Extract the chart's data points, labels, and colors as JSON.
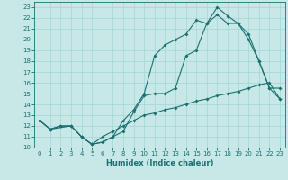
{
  "title": "",
  "xlabel": "Humidex (Indice chaleur)",
  "xlim": [
    -0.5,
    23.5
  ],
  "ylim": [
    10,
    23.5
  ],
  "yticks": [
    10,
    11,
    12,
    13,
    14,
    15,
    16,
    17,
    18,
    19,
    20,
    21,
    22,
    23
  ],
  "xticks": [
    0,
    1,
    2,
    3,
    4,
    5,
    6,
    7,
    8,
    9,
    10,
    11,
    12,
    13,
    14,
    15,
    16,
    17,
    18,
    19,
    20,
    21,
    22,
    23
  ],
  "bg_color": "#c8e8e8",
  "line_color": "#1a7070",
  "grid_color": "#a8d8d8",
  "line1_x": [
    0,
    1,
    2,
    3,
    4,
    5,
    6,
    7,
    8,
    9,
    10,
    11,
    12,
    13,
    14,
    15,
    16,
    17,
    18,
    19,
    20,
    21,
    22,
    23
  ],
  "line1_y": [
    12.5,
    11.7,
    12.0,
    12.0,
    11.0,
    10.3,
    10.5,
    11.0,
    11.5,
    13.3,
    14.8,
    15.0,
    15.0,
    15.5,
    18.5,
    19.0,
    21.5,
    23.0,
    22.2,
    21.5,
    20.5,
    18.0,
    15.5,
    14.5
  ],
  "line2_x": [
    0,
    1,
    3,
    4,
    5,
    6,
    7,
    8,
    9,
    10,
    11,
    12,
    13,
    14,
    15,
    16,
    17,
    18,
    19,
    20,
    21,
    22,
    23
  ],
  "line2_y": [
    12.5,
    11.7,
    12.0,
    11.0,
    10.3,
    10.5,
    11.0,
    12.5,
    13.5,
    15.0,
    18.5,
    19.5,
    20.0,
    20.5,
    21.8,
    21.5,
    22.3,
    21.5,
    21.5,
    20.0,
    18.0,
    15.5,
    15.5
  ],
  "line3_x": [
    0,
    1,
    2,
    3,
    4,
    5,
    6,
    7,
    8,
    9,
    10,
    11,
    12,
    13,
    14,
    15,
    16,
    17,
    18,
    19,
    20,
    21,
    22,
    23
  ],
  "line3_y": [
    12.5,
    11.7,
    12.0,
    12.0,
    11.0,
    10.3,
    11.0,
    11.5,
    12.0,
    12.5,
    13.0,
    13.2,
    13.5,
    13.7,
    14.0,
    14.3,
    14.5,
    14.8,
    15.0,
    15.2,
    15.5,
    15.8,
    16.0,
    14.5
  ],
  "marker": "D",
  "markersize": 2.0,
  "linewidth": 0.8,
  "tick_fontsize": 5,
  "xlabel_fontsize": 6
}
